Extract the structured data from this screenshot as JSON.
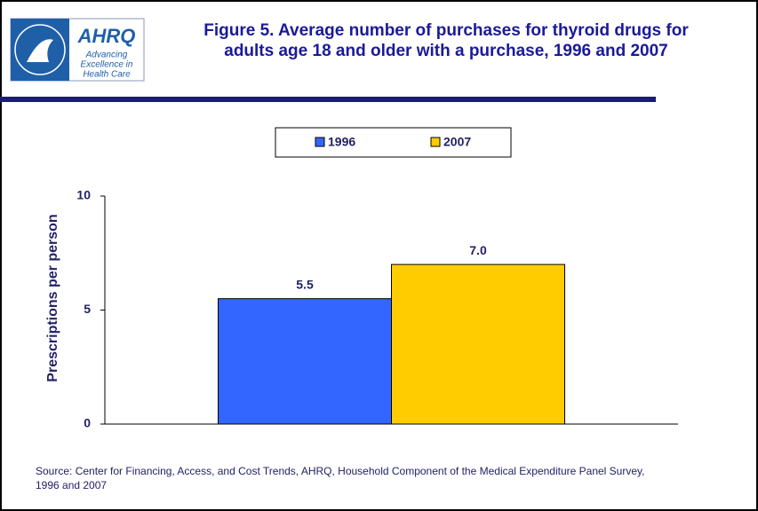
{
  "logo": {
    "name": "AHRQ",
    "tagline": [
      "Advancing",
      "Excellence in",
      "Health Care"
    ]
  },
  "chart_data": {
    "type": "bar",
    "title": [
      "Figure 5. Average number of purchases for thyroid drugs for",
      "adults age 18 and older with a purchase, 1996 and 2007"
    ],
    "y_label": "Prescriptions per person",
    "categories": [
      null
    ],
    "series": [
      {
        "name": "1996",
        "color": "#3366ff",
        "values": [
          5.5
        ]
      },
      {
        "name": "2007",
        "color": "#ffcc00",
        "values": [
          7.0
        ],
        "value_labels": [
          "7.0"
        ]
      }
    ],
    "ylim": [
      0,
      10
    ],
    "yticks": [
      0,
      5,
      10
    ],
    "legend": "top",
    "source": [
      "Source: Center for Financing, Access, and Cost Trends, AHRQ, Household Component of the Medical Expenditure Panel Survey,",
      "1996 and 2007"
    ]
  }
}
